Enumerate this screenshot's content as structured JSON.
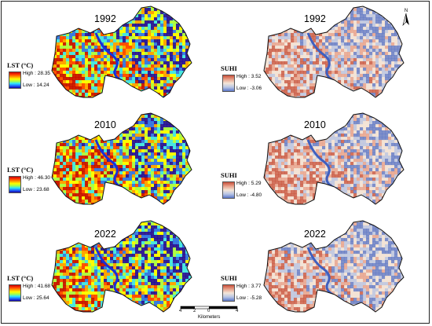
{
  "north_arrow": {
    "label": "N",
    "icon": "north-arrow-icon"
  },
  "panels": [
    {
      "id": "lst-1992",
      "year": "1992",
      "legend_title": "LST (°C)",
      "high": "High : 28.35",
      "low": "Low : 14.24",
      "ramp": "lst"
    },
    {
      "id": "suhi-1992",
      "year": "1992",
      "legend_title": "SUHI",
      "high": "High : 3.52",
      "low": "Low : -3.06",
      "ramp": "suhi"
    },
    {
      "id": "lst-2010",
      "year": "2010",
      "legend_title": "LST (°C)",
      "high": "High : 46.30",
      "low": "Low : 23.68",
      "ramp": "lst"
    },
    {
      "id": "suhi-2010",
      "year": "2010",
      "legend_title": "SUHI",
      "high": "High : 5.29",
      "low": "Low : -4.80",
      "ramp": "suhi"
    },
    {
      "id": "lst-2022",
      "year": "2022",
      "legend_title": "LST (°C)",
      "high": "High : 41.68",
      "low": "Low : 25.64",
      "ramp": "lst"
    },
    {
      "id": "suhi-2022",
      "year": "2022",
      "legend_title": "SUHI",
      "high": "High : 3.77",
      "low": "Low : -5.28",
      "ramp": "suhi"
    }
  ],
  "scale_bar": {
    "ticks": [
      "4",
      "2",
      "0",
      "4"
    ],
    "unit": "Kilometers"
  },
  "colors": {
    "lst_ramp": [
      "#c40000",
      "#ff3a00",
      "#ff9a00",
      "#ffff00",
      "#a6ff4a",
      "#2fe6ff",
      "#1f6bff",
      "#1500a8"
    ],
    "suhi_ramp": [
      "#c8503a",
      "#e8a08a",
      "#f4e6d8",
      "#b8c6e6",
      "#5a76c8"
    ]
  }
}
